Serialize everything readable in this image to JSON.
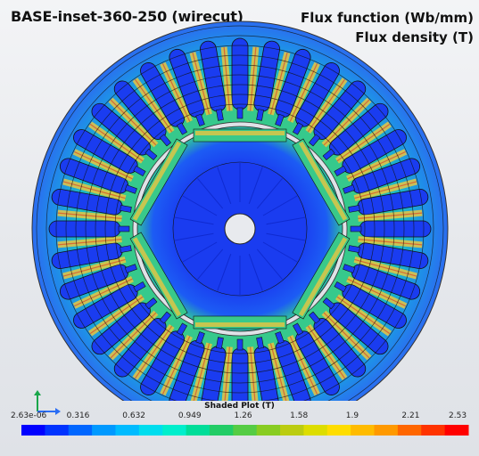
{
  "header": {
    "model_title": "BASE-inset-360-250 (wirecut)",
    "function_label": "Flux function (Wb/mm)",
    "density_label": "Flux density (T)"
  },
  "plot": {
    "stator_slots": 36,
    "rotor_poles": 6,
    "colors": {
      "low": "#1a3cf0",
      "mid": "#39c98a",
      "high": "#e8c541",
      "peak": "#e2301c",
      "background": "#e6e8ec"
    }
  },
  "legend": {
    "title": "Shaded Plot (T)",
    "ticks": [
      "2.63e-06",
      "0.316",
      "0.632",
      "0.949",
      "1.26",
      "1.58",
      "1.9",
      "2.21",
      "2.53"
    ],
    "min": 2.63e-06,
    "max": 2.53,
    "band_colors": [
      "#0000ff",
      "#0033ff",
      "#0066ff",
      "#0099ff",
      "#00bbff",
      "#00ddee",
      "#00eecc",
      "#00dd99",
      "#22cc66",
      "#55cc44",
      "#88cc22",
      "#bbcc11",
      "#dddd00",
      "#ffdd00",
      "#ffbb00",
      "#ff9900",
      "#ff6600",
      "#ff3300",
      "#ff0000"
    ]
  },
  "axes_icon": {
    "x_color": "#2a6df4",
    "y_color": "#1aa64a"
  }
}
